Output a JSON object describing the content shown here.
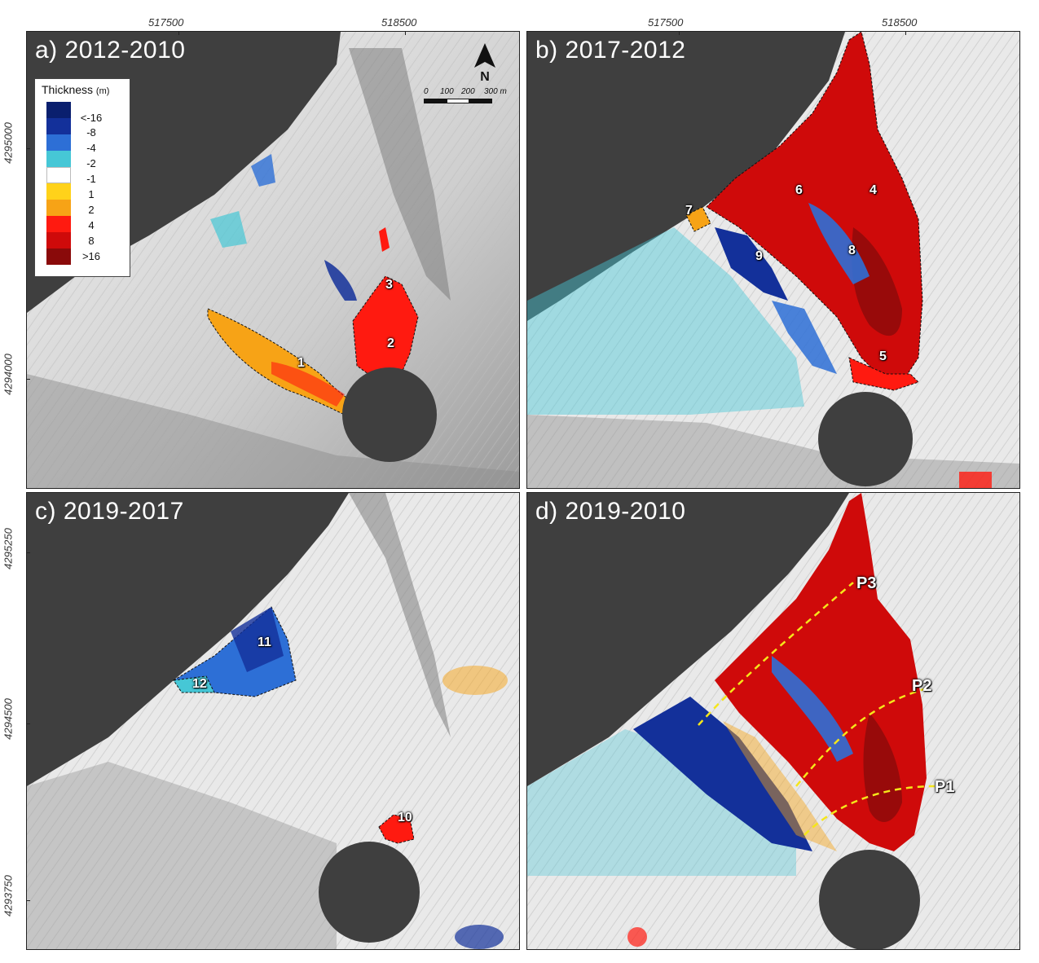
{
  "axes": {
    "top_x_labels": [
      "517500",
      "518500",
      "517500",
      "518500"
    ],
    "left_y_labels_top": [
      "4295000",
      "4294000"
    ],
    "left_y_labels_bottom": [
      "4295250",
      "4294500",
      "4293750"
    ]
  },
  "panels": [
    {
      "id": "a",
      "title": "a) 2012-2010",
      "labels": [
        "1",
        "2",
        "3"
      ]
    },
    {
      "id": "b",
      "title": "b) 2017-2012",
      "labels": [
        "4",
        "5",
        "6",
        "7",
        "8",
        "9"
      ]
    },
    {
      "id": "c",
      "title": "c) 2019-2017",
      "labels": [
        "10",
        "11",
        "12"
      ]
    },
    {
      "id": "d",
      "title": "d) 2019-2010",
      "labels": [
        "P1",
        "P2",
        "P3"
      ]
    }
  ],
  "legend": {
    "title": "Thickness",
    "unit": "(m)",
    "classes": [
      {
        "label": "<-16",
        "color": "#0a1f6e"
      },
      {
        "label": "-8",
        "color": "#13309a"
      },
      {
        "label": "-4",
        "color": "#2d6fd6"
      },
      {
        "label": "-2",
        "color": "#46c7d6"
      },
      {
        "label": "-1",
        "color": "#ffffff"
      },
      {
        "label": "1",
        "color": "#ffd21a"
      },
      {
        "label": "2",
        "color": "#f7a316"
      },
      {
        "label": "4",
        "color": "#ff1a10"
      },
      {
        "label": "8",
        "color": "#cf0a0a"
      },
      {
        "label": ">16",
        "color": "#8a0a0a"
      }
    ]
  },
  "north_arrow": {
    "label": "N"
  },
  "scale_bar": {
    "labels": [
      "0",
      "100",
      "200",
      "300 m"
    ]
  },
  "colors": {
    "sea": "#3f3f3f",
    "terrain_light": "#eeeeee",
    "terrain_dark": "#9a9a9a",
    "profile_line": "#f5e61a"
  }
}
